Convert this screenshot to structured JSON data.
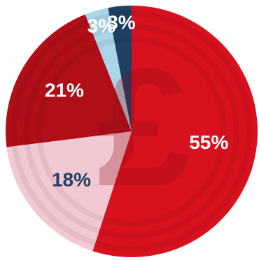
{
  "chart_data": {
    "type": "pie",
    "slices": [
      {
        "label": "55%",
        "value": 55,
        "color": "#d7111d",
        "text_color": "#ffffff"
      },
      {
        "label": "18%",
        "value": 18,
        "color": "#f2c8d3",
        "text_color": "#1f3f63"
      },
      {
        "label": "21%",
        "value": 21,
        "color": "#b10f18",
        "text_color": "#ffffff"
      },
      {
        "label": "3%",
        "value": 3,
        "color": "#a9d6e8",
        "text_color": "#ffffff"
      },
      {
        "label": "3%",
        "value": 3,
        "color": "#1f3f63",
        "text_color": "#ffffff"
      }
    ],
    "start_angle_deg": 0,
    "direction": "clockwise",
    "background_symbol": "£"
  }
}
